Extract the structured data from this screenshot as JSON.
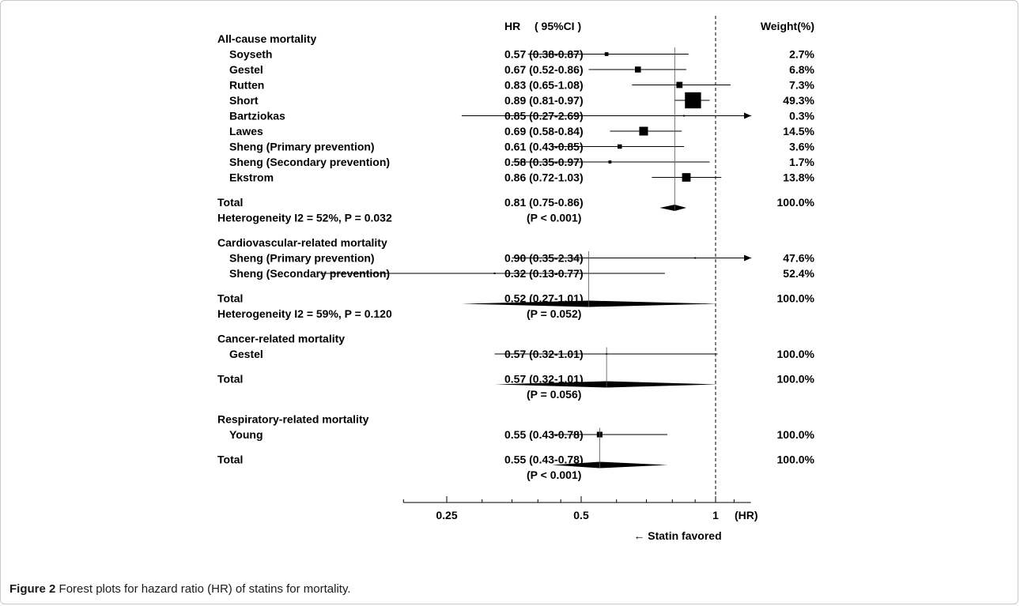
{
  "chart_data": {
    "type": "forest",
    "header": {
      "hr": "HR",
      "ci": "( 95%CI )",
      "weight": "Weight(%)"
    },
    "x_scale": "log",
    "xlim": [
      0.2,
      1.2
    ],
    "ticks": [
      {
        "value": 0.25,
        "label": "0.25"
      },
      {
        "value": 0.5,
        "label": "0.5"
      },
      {
        "value": 1,
        "label": "1"
      }
    ],
    "axis_unit": "(HR)",
    "reference_line": 1,
    "favored_label": "← Statin favored",
    "rows": [
      {
        "kind": "group",
        "label": "All-cause mortality"
      },
      {
        "kind": "study",
        "label": "Soyseth",
        "hr": 0.57,
        "lo": 0.38,
        "hi": 0.87,
        "hr_text": "0.57 (0.38-0.87)",
        "weight_text": "2.7%",
        "weight": 2.7
      },
      {
        "kind": "study",
        "label": "Gestel",
        "hr": 0.67,
        "lo": 0.52,
        "hi": 0.86,
        "hr_text": "0.67 (0.52-0.86)",
        "weight_text": "6.8%",
        "weight": 6.8
      },
      {
        "kind": "study",
        "label": "Rutten",
        "hr": 0.83,
        "lo": 0.65,
        "hi": 1.08,
        "hr_text": "0.83 (0.65-1.08)",
        "weight_text": "7.3%",
        "weight": 7.3
      },
      {
        "kind": "study",
        "label": "Short",
        "hr": 0.89,
        "lo": 0.81,
        "hi": 0.97,
        "hr_text": "0.89 (0.81-0.97)",
        "weight_text": "49.3%",
        "weight": 49.3
      },
      {
        "kind": "study",
        "label": "Bartziokas",
        "hr": 0.85,
        "lo": 0.27,
        "hi": 2.69,
        "hr_text": "0.85 (0.27-2.69)",
        "weight_text": "0.3%",
        "weight": 0.3
      },
      {
        "kind": "study",
        "label": "Lawes",
        "hr": 0.69,
        "lo": 0.58,
        "hi": 0.84,
        "hr_text": "0.69 (0.58-0.84)",
        "weight_text": "14.5%",
        "weight": 14.5
      },
      {
        "kind": "study",
        "label": "Sheng (Primary prevention)",
        "hr": 0.61,
        "lo": 0.43,
        "hi": 0.85,
        "hr_text": "0.61 (0.43-0.85)",
        "weight_text": "3.6%",
        "weight": 3.6
      },
      {
        "kind": "study",
        "label": "Sheng (Secondary prevention)",
        "hr": 0.58,
        "lo": 0.35,
        "hi": 0.97,
        "hr_text": "0.58 (0.35-0.97)",
        "weight_text": "1.7%",
        "weight": 1.7
      },
      {
        "kind": "study",
        "label": "Ekstrom",
        "hr": 0.86,
        "lo": 0.72,
        "hi": 1.03,
        "hr_text": "0.86 (0.72-1.03)",
        "weight_text": "13.8%",
        "weight": 13.8
      },
      {
        "kind": "gap"
      },
      {
        "kind": "total",
        "label": "Total",
        "hr": 0.81,
        "lo": 0.75,
        "hi": 0.86,
        "hr_text": "0.81 (0.75-0.86)",
        "weight_text": "100.0%"
      },
      {
        "kind": "note",
        "label": "Heterogeneity I2 = 52%, P = 0.032",
        "p_text": "(P < 0.001)"
      },
      {
        "kind": "gap"
      },
      {
        "kind": "group",
        "label": "Cardiovascular-related mortality"
      },
      {
        "kind": "study",
        "label": "Sheng (Primary prevention)",
        "hr": 0.9,
        "lo": 0.35,
        "hi": 2.34,
        "hr_text": "0.90 (0.35-2.34)",
        "weight_text": "47.6%",
        "weight": 0.3
      },
      {
        "kind": "study",
        "label": "Sheng (Secondary prevention)",
        "hr": 0.32,
        "lo": 0.13,
        "hi": 0.77,
        "hr_text": "0.32 (0.13-0.77)",
        "weight_text": "52.4%",
        "weight": 0.3
      },
      {
        "kind": "gap"
      },
      {
        "kind": "total",
        "label": "Total",
        "hr": 0.52,
        "lo": 0.27,
        "hi": 1.01,
        "hr_text": "0.52 (0.27-1.01)",
        "weight_text": "100.0%"
      },
      {
        "kind": "note",
        "label": "Heterogeneity I2 = 59%, P = 0.120",
        "p_text": "(P = 0.052)"
      },
      {
        "kind": "gap"
      },
      {
        "kind": "group",
        "label": "Cancer-related mortality"
      },
      {
        "kind": "study",
        "label": "Gestel",
        "hr": 0.57,
        "lo": 0.32,
        "hi": 1.01,
        "hr_text": "0.57 (0.32-1.01)",
        "weight_text": "100.0%",
        "weight": 0.5
      },
      {
        "kind": "gap"
      },
      {
        "kind": "total",
        "label": "Total",
        "hr": 0.57,
        "lo": 0.32,
        "hi": 1.01,
        "hr_text": "0.57 (0.32-1.01)",
        "weight_text": "100.0%"
      },
      {
        "kind": "note",
        "label": "",
        "p_text": "(P = 0.056)"
      },
      {
        "kind": "gap"
      },
      {
        "kind": "group",
        "label": "Respiratory-related mortality"
      },
      {
        "kind": "study",
        "label": "Young",
        "hr": 0.55,
        "lo": 0.43,
        "hi": 0.78,
        "hr_text": "0.55 (0.43-0.78)",
        "weight_text": "100.0%",
        "weight": 6.0
      },
      {
        "kind": "gap"
      },
      {
        "kind": "total",
        "label": "Total",
        "hr": 0.55,
        "lo": 0.43,
        "hi": 0.78,
        "hr_text": "0.55 (0.43-0.78)",
        "weight_text": "100.0%"
      },
      {
        "kind": "note",
        "label": "",
        "p_text": "(P < 0.001)"
      }
    ]
  },
  "caption": {
    "label": "Figure 2",
    "text": "Forest plots for hazard ratio (HR) of statins for mortality."
  }
}
